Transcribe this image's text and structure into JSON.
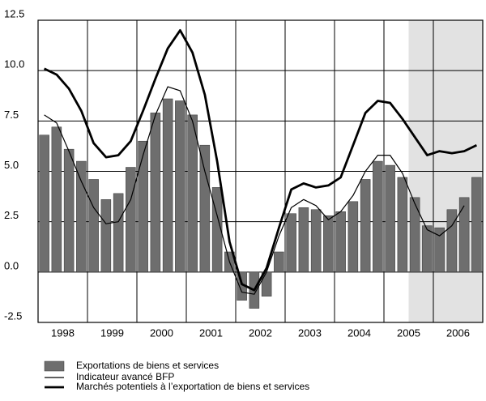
{
  "chart_data": {
    "type": "bar-line",
    "year_labels": [
      "1998",
      "1999",
      "2000",
      "2001",
      "2002",
      "2003",
      "2004",
      "2005",
      "2006"
    ],
    "shade_from": 30,
    "ylim": [
      -2.5,
      12.5
    ],
    "yticks": [
      12.5,
      {
        "value": 10,
        "label": "10.0"
      },
      7.5,
      {
        "value": 5,
        "label": "5.0"
      },
      2.5,
      {
        "value": 0,
        "label": "0.0"
      },
      -2.5
    ],
    "grid": true,
    "series": [
      {
        "name": "Exportations de biens et services",
        "kind": "bar",
        "color": "#6e6e6e",
        "values": [
          6.8,
          7.2,
          6.1,
          5.5,
          4.6,
          3.6,
          3.9,
          5.2,
          6.5,
          7.9,
          8.6,
          8.5,
          7.8,
          6.3,
          4.2,
          1.0,
          -1.4,
          -1.8,
          -1.2,
          1.0,
          2.9,
          3.2,
          3.1,
          2.8,
          3.0,
          3.5,
          4.6,
          5.5,
          5.3,
          4.7,
          3.7,
          2.3,
          2.2,
          3.1,
          3.7,
          4.7
        ]
      },
      {
        "name": "Indicateur avancé BFP",
        "kind": "line",
        "color": "#000000",
        "width": 1.2,
        "values": [
          7.8,
          7.4,
          6.0,
          4.5,
          3.2,
          2.4,
          2.5,
          3.6,
          5.8,
          7.8,
          9.2,
          9.0,
          7.5,
          5.0,
          2.8,
          0.5,
          -1.0,
          -1.1,
          0.0,
          1.8,
          3.2,
          3.6,
          3.3,
          2.6,
          3.0,
          3.8,
          5.0,
          5.8,
          5.8,
          4.9,
          3.4,
          2.1,
          1.8,
          2.3,
          3.3,
          null
        ]
      },
      {
        "name": "Marchés potentiels à l’exportation de biens et services",
        "kind": "line",
        "color": "#000000",
        "width": 2.8,
        "values": [
          10.1,
          9.8,
          9.1,
          8.0,
          6.4,
          5.7,
          5.8,
          6.5,
          8.0,
          9.6,
          11.1,
          12.0,
          10.9,
          8.8,
          5.5,
          1.5,
          -0.6,
          -0.9,
          0.2,
          2.2,
          4.1,
          4.4,
          4.2,
          4.3,
          4.7,
          6.3,
          7.9,
          8.5,
          8.4,
          7.6,
          6.7,
          5.8,
          6.0,
          5.9,
          6.0,
          6.3
        ]
      }
    ]
  }
}
